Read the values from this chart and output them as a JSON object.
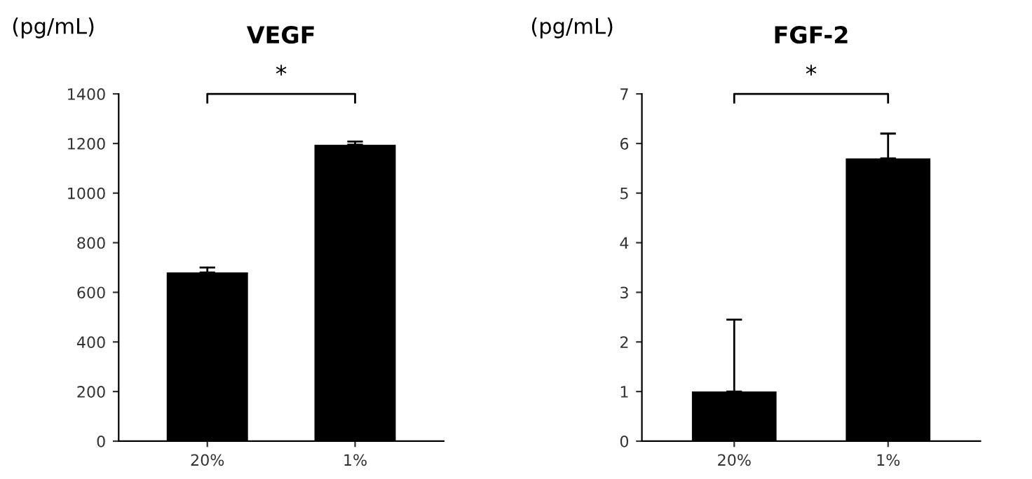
{
  "chart_data": [
    {
      "type": "bar",
      "title": "VEGF",
      "ylabel": "(pg/mL)",
      "categories": [
        "20%",
        "1%"
      ],
      "values": [
        680,
        1195
      ],
      "errors": [
        [
          680,
          700
        ],
        [
          1195,
          1208
        ]
      ],
      "color": "#000000",
      "ylim": [
        0,
        1400
      ],
      "yticks": [
        0,
        200,
        400,
        600,
        800,
        1000,
        1200,
        1400
      ],
      "grid": false,
      "annotations": [
        "*"
      ]
    },
    {
      "type": "bar",
      "title": "FGF-2",
      "ylabel": "(pg/mL)",
      "categories": [
        "20%",
        "1%"
      ],
      "values": [
        1.0,
        5.7
      ],
      "errors": [
        [
          1.0,
          2.45
        ],
        [
          5.7,
          6.2
        ]
      ],
      "color": "#000000",
      "ylim": [
        0,
        7
      ],
      "yticks": [
        0,
        1,
        2,
        3,
        4,
        5,
        6,
        7
      ],
      "grid": false,
      "annotations": [
        "*"
      ]
    }
  ]
}
